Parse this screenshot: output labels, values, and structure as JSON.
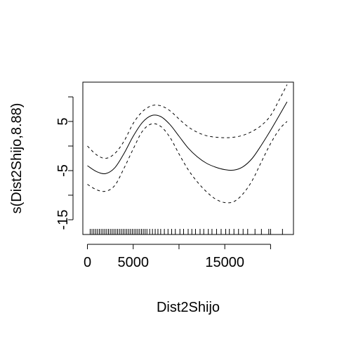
{
  "chart_data": {
    "type": "line",
    "title": "",
    "xlabel": "Dist2Shijo",
    "ylabel": "s(Dist2Shijo,8.88)",
    "xlim": [
      -500,
      22500
    ],
    "ylim": [
      -18,
      13
    ],
    "x_ticks": [
      0,
      5000,
      10000,
      15000,
      20000
    ],
    "x_tick_labels": [
      "0",
      "5000",
      "",
      "15000",
      ""
    ],
    "y_ticks": [
      -15,
      -10,
      -5,
      0,
      5,
      10
    ],
    "y_tick_labels": [
      "-15",
      "",
      "-5",
      "",
      "5",
      ""
    ],
    "grid": false,
    "legend": "none",
    "series": [
      {
        "role": "estimate",
        "style": "solid",
        "x": [
          0,
          1000,
          2000,
          3000,
          4000,
          5000,
          6000,
          7000,
          8000,
          9000,
          10000,
          11000,
          12000,
          13000,
          14000,
          15000,
          16000,
          17000,
          18000,
          19000,
          20000,
          21000,
          21800
        ],
        "y": [
          -4,
          -5.2,
          -5.6,
          -4.4,
          -1.5,
          2,
          4.8,
          6.2,
          6,
          4.4,
          2,
          -0.4,
          -2.2,
          -3.5,
          -4.3,
          -4.8,
          -4.9,
          -4.2,
          -2.5,
          0.2,
          3.2,
          6.4,
          9
        ]
      },
      {
        "role": "upper_band",
        "style": "dashed",
        "x": [
          0,
          1000,
          2000,
          3000,
          4000,
          5000,
          6000,
          7000,
          8000,
          9000,
          10000,
          11000,
          12000,
          13000,
          14000,
          15000,
          16000,
          17000,
          18000,
          19000,
          20000,
          21000,
          21800
        ],
        "y": [
          0,
          -1.8,
          -2.5,
          -1.5,
          1,
          4.6,
          7,
          8.2,
          8.2,
          7.2,
          5.5,
          3.9,
          2.8,
          2.1,
          1.8,
          1.7,
          1.8,
          2.2,
          3,
          4.2,
          6.2,
          9.6,
          12.5
        ]
      },
      {
        "role": "lower_band",
        "style": "dashed",
        "x": [
          0,
          1000,
          2000,
          3000,
          4000,
          5000,
          6000,
          7000,
          8000,
          9000,
          10000,
          11000,
          12000,
          13000,
          14000,
          15000,
          16000,
          17000,
          18000,
          19000,
          20000,
          21000,
          21800
        ],
        "y": [
          -7.8,
          -8.9,
          -9.2,
          -8,
          -4.5,
          -0.6,
          3,
          4.5,
          4,
          1.8,
          -1.6,
          -4.8,
          -7.3,
          -9.3,
          -10.8,
          -11.5,
          -11.3,
          -9.7,
          -7,
          -3.2,
          0.5,
          3.5,
          5
        ]
      }
    ],
    "rug_x": [
      300,
      500,
      700,
      900,
      1100,
      1300,
      1500,
      1700,
      1900,
      2100,
      2300,
      2500,
      2700,
      2900,
      3100,
      3300,
      3500,
      3700,
      3900,
      4100,
      4300,
      4500,
      4700,
      4900,
      5100,
      5300,
      5500,
      5700,
      5900,
      6100,
      6300,
      6500,
      6800,
      7100,
      7400,
      7700,
      8000,
      8400,
      8800,
      9200,
      9600,
      10100,
      10500,
      11000,
      11400,
      11800,
      12300,
      12700,
      13200,
      13600,
      14100,
      14600,
      15100,
      15500,
      16000,
      16500,
      17000,
      17500,
      18300,
      19000,
      19800,
      20000,
      21300
    ]
  }
}
